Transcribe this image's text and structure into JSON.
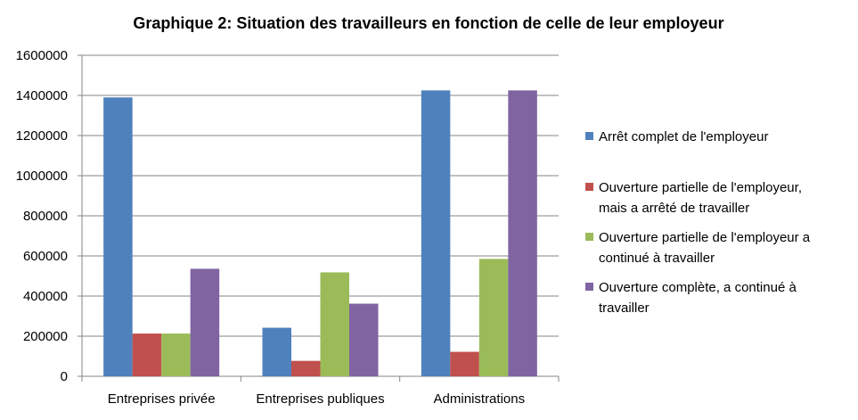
{
  "chart_data": {
    "type": "bar",
    "title": "Graphique 2: Situation des travailleurs en fonction de celle de leur employeur",
    "xlabel": "",
    "ylabel": "",
    "ylim": [
      0,
      1600000
    ],
    "y_ticks": [
      0,
      200000,
      400000,
      600000,
      800000,
      1000000,
      1200000,
      1400000,
      1600000
    ],
    "y_tick_labels": [
      "0",
      "200000",
      "400000",
      "600000",
      "800000",
      "1000000",
      "1200000",
      "1400000",
      "1600000"
    ],
    "grid": true,
    "legend_position": "right",
    "categories": [
      "Entreprises privée",
      "Entreprises publiques",
      "Administrations"
    ],
    "series": [
      {
        "name": "Arrêt complet de l'employeur",
        "legend_lines": [
          "Arrêt complet de l'employeur"
        ],
        "color": "#4F81BD",
        "values": [
          1390000,
          242000,
          1425000
        ]
      },
      {
        "name": "Ouverture partielle de l'employeur, mais a arrêté de travailler",
        "legend_lines": [
          "Ouverture partielle de l'employeur,",
          "mais a arrêté de travailler"
        ],
        "color": "#C0504D",
        "values": [
          213000,
          77000,
          122000
        ]
      },
      {
        "name": "Ouverture partielle de l'employeur a continué à travailler",
        "legend_lines": [
          "Ouverture partielle de l'employeur a",
          "continué à travailler"
        ],
        "color": "#9BBB59",
        "values": [
          213000,
          518000,
          585000
        ]
      },
      {
        "name": "Ouverture complète, a continué à travailler",
        "legend_lines": [
          "Ouverture complète, a continué à",
          "travailler"
        ],
        "color": "#8064A2",
        "values": [
          536000,
          362000,
          1425000
        ]
      }
    ]
  }
}
